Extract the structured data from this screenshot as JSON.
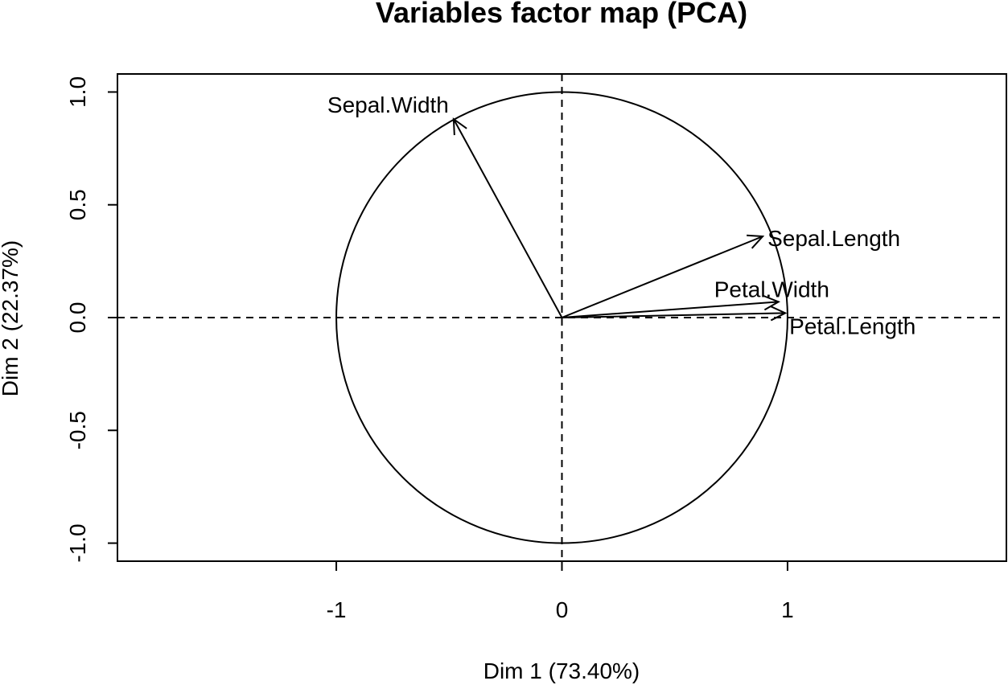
{
  "chart_data": {
    "type": "scatter",
    "subtype": "pca-correlation-circle",
    "title": "Variables factor map (PCA)",
    "xlabel": "Dim 1 (73.40%)",
    "ylabel": "Dim 2 (22.37%)",
    "xlim": [
      -1.97,
      1.97
    ],
    "ylim": [
      -1.08,
      1.08
    ],
    "x_ticks": [
      {
        "value": -1,
        "label": "-1"
      },
      {
        "value": 0,
        "label": "0"
      },
      {
        "value": 1,
        "label": "1"
      }
    ],
    "y_ticks": [
      {
        "value": -1.0,
        "label": "-1.0"
      },
      {
        "value": -0.5,
        "label": "-0.5"
      },
      {
        "value": 0.0,
        "label": "0.0"
      },
      {
        "value": 0.5,
        "label": "0.5"
      },
      {
        "value": 1.0,
        "label": "1.0"
      }
    ],
    "unit_circle": true,
    "reference_lines": "dashed at x=0 and y=0",
    "grid": false,
    "variables": [
      {
        "name": "Sepal.Length",
        "x": 0.89,
        "y": 0.36
      },
      {
        "name": "Sepal.Width",
        "x": -0.48,
        "y": 0.88
      },
      {
        "name": "Petal.Length",
        "x": 0.99,
        "y": 0.02
      },
      {
        "name": "Petal.Width",
        "x": 0.96,
        "y": 0.07
      }
    ]
  }
}
